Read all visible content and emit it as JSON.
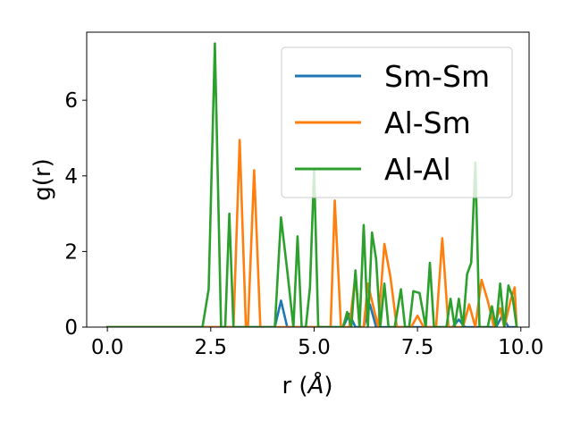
{
  "chart_data": {
    "type": "line",
    "title": "",
    "xlabel_main": "r (",
    "xlabel_unit": "Å",
    "xlabel_close": ")",
    "ylabel": "g(r)",
    "xlim": [
      -0.5,
      10.2
    ],
    "ylim": [
      0,
      7.8
    ],
    "xticks": [
      0.0,
      2.5,
      5.0,
      7.5,
      10.0
    ],
    "xtick_labels": [
      "0.0",
      "2.5",
      "5.0",
      "7.5",
      "10.0"
    ],
    "yticks": [
      0,
      2,
      4,
      6
    ],
    "ytick_labels": [
      "0",
      "2",
      "4",
      "6"
    ],
    "legend_position": "top-right",
    "series": [
      {
        "name": "Sm-Sm",
        "color": "#1f77b4",
        "x": [
          0.0,
          4.05,
          4.2,
          4.35,
          5.7,
          5.85,
          6.0,
          6.2,
          6.35,
          6.5,
          8.35,
          8.5,
          8.65,
          9.4,
          9.55,
          9.7,
          9.9
        ],
        "y": [
          0,
          0,
          0.7,
          0,
          0,
          0.35,
          0,
          0,
          0.6,
          0,
          0,
          0.2,
          0,
          0,
          0.3,
          0,
          0
        ]
      },
      {
        "name": "Al-Sm",
        "color": "#ff7f0e",
        "x": [
          0.0,
          3.05,
          3.2,
          3.35,
          3.4,
          3.55,
          3.7,
          5.4,
          5.5,
          5.65,
          5.85,
          6.0,
          6.1,
          6.2,
          6.3,
          6.55,
          6.7,
          6.85,
          7.0,
          7.35,
          7.5,
          7.65,
          7.95,
          8.1,
          8.25,
          8.6,
          8.75,
          8.9,
          9.05,
          9.2,
          9.35,
          9.5,
          9.6,
          9.75,
          9.85,
          9.9
        ],
        "y": [
          0,
          0,
          4.95,
          0,
          0,
          4.15,
          0,
          0,
          3.35,
          0,
          0,
          1.35,
          0,
          0,
          1.15,
          0,
          2.2,
          1.3,
          0,
          0,
          0.3,
          0,
          0,
          2.35,
          0,
          0,
          0.6,
          0,
          1.25,
          0.7,
          0,
          0.5,
          0,
          0.7,
          1.05,
          0
        ]
      },
      {
        "name": "Al-Al",
        "color": "#2ca02c",
        "x": [
          0.0,
          2.3,
          2.45,
          2.6,
          2.75,
          2.85,
          2.95,
          3.05,
          4.05,
          4.2,
          4.35,
          4.5,
          4.6,
          4.7,
          4.8,
          4.9,
          5.0,
          5.1,
          5.2,
          5.7,
          5.8,
          5.9,
          6.0,
          6.1,
          6.2,
          6.3,
          6.4,
          6.5,
          6.6,
          6.7,
          6.8,
          6.95,
          7.1,
          7.2,
          7.3,
          7.4,
          7.55,
          7.7,
          7.8,
          7.9,
          8.05,
          8.2,
          8.3,
          8.4,
          8.5,
          8.6,
          8.7,
          8.8,
          8.9,
          9.0,
          9.1,
          9.2,
          9.3,
          9.4,
          9.5,
          9.6,
          9.7,
          9.8,
          9.9
        ],
        "y": [
          0,
          0,
          1.0,
          7.5,
          0,
          0,
          3.0,
          0,
          0,
          2.9,
          1.5,
          0,
          2.4,
          0,
          0,
          1.05,
          4.15,
          0,
          0,
          0,
          0.4,
          0,
          1.5,
          0,
          2.7,
          0,
          2.5,
          1.8,
          0,
          1.15,
          0,
          0,
          1.0,
          0,
          0,
          0.95,
          0.9,
          0,
          1.7,
          0,
          0,
          0,
          0.75,
          0,
          0.75,
          0,
          1.4,
          1.7,
          4.35,
          0,
          0,
          0,
          0.55,
          0,
          1.15,
          0,
          1.1,
          0.8,
          0
        ]
      }
    ]
  }
}
